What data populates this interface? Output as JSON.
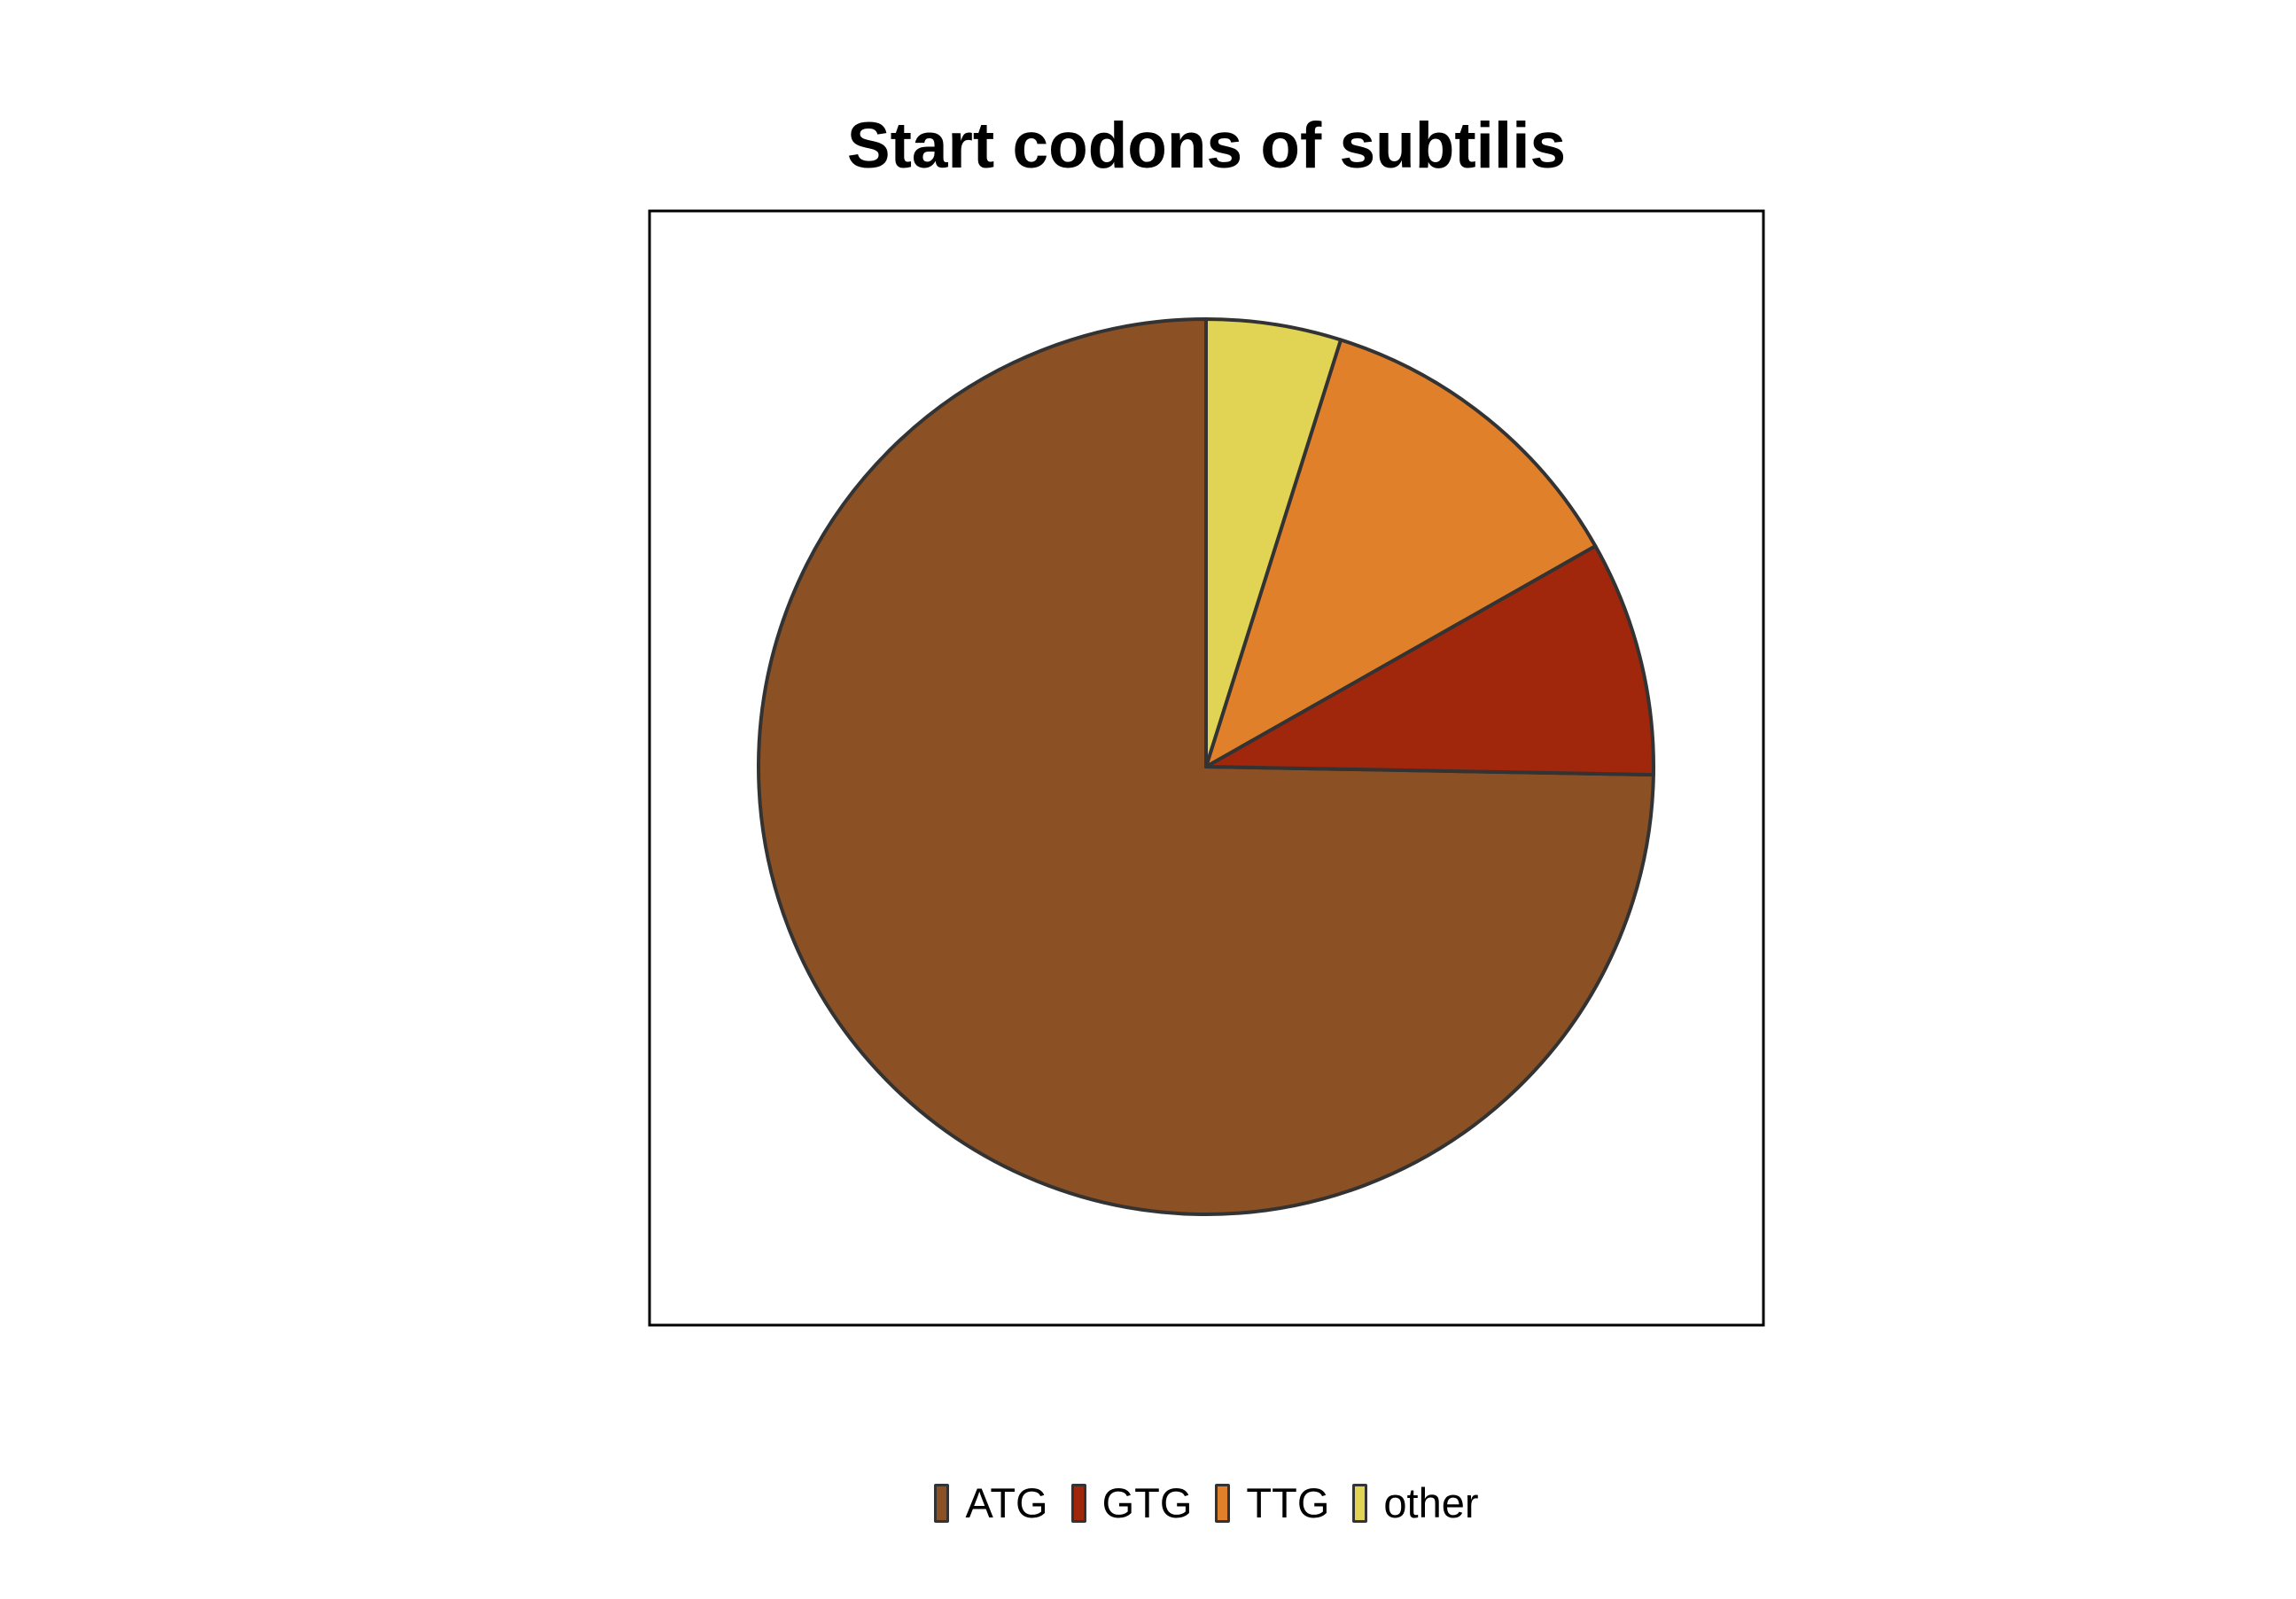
{
  "chart_data": {
    "type": "pie",
    "title": "Start codons of subtilis",
    "categories": [
      "ATG",
      "GTG",
      "TTG",
      "other"
    ],
    "values": [
      78.3,
      8.9,
      12.5,
      5.1
    ],
    "colors": [
      "#8B5124",
      "#A0260C",
      "#E1802B",
      "#E1D354"
    ],
    "start_angle_deg": 0,
    "direction": "counterclockwise",
    "legend_position": "bottom",
    "frame": true
  }
}
